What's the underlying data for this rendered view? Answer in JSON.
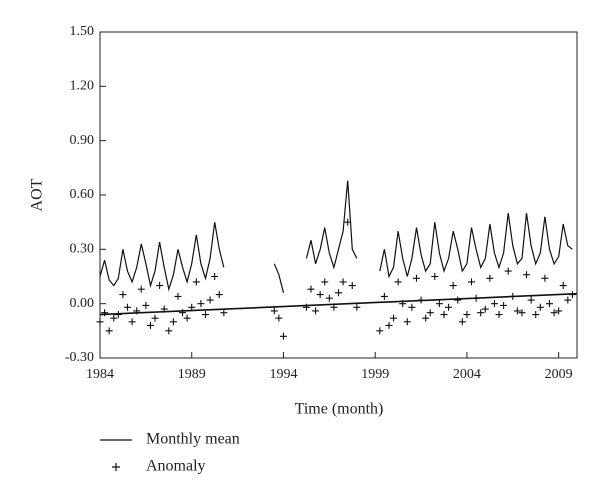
{
  "chart_data": {
    "type": "line",
    "xlabel": "Time (month)",
    "ylabel": "AOT",
    "x": [
      1984.0,
      1984.25,
      1984.5,
      1984.75,
      1985.0,
      1985.25,
      1985.5,
      1985.75,
      1986.0,
      1986.25,
      1986.5,
      1986.75,
      1987.0,
      1987.25,
      1987.5,
      1987.75,
      1988.0,
      1988.25,
      1988.5,
      1988.75,
      1989.0,
      1989.25,
      1989.5,
      1989.75,
      1990.0,
      1990.25,
      1990.5,
      1990.75,
      1991.0,
      1991.25,
      1991.5,
      1991.75,
      1992.0,
      1992.25,
      1992.5,
      1992.75,
      1993.0,
      1993.25,
      1993.5,
      1993.75,
      1994.0,
      1994.25,
      1994.5,
      1994.75,
      1995.0,
      1995.25,
      1995.5,
      1995.75,
      1996.0,
      1996.25,
      1996.5,
      1996.75,
      1997.0,
      1997.25,
      1997.5,
      1997.75,
      1998.0,
      1998.25,
      1998.5,
      1998.75,
      1999.0,
      1999.25,
      1999.5,
      1999.75,
      2000.0,
      2000.25,
      2000.5,
      2000.75,
      2001.0,
      2001.25,
      2001.5,
      2001.75,
      2002.0,
      2002.25,
      2002.5,
      2002.75,
      2003.0,
      2003.25,
      2003.5,
      2003.75,
      2004.0,
      2004.25,
      2004.5,
      2004.75,
      2005.0,
      2005.25,
      2005.5,
      2005.75,
      2006.0,
      2006.25,
      2006.5,
      2006.75,
      2007.0,
      2007.25,
      2007.5,
      2007.75,
      2008.0,
      2008.25,
      2008.5,
      2008.75,
      2009.0,
      2009.25,
      2009.5,
      2009.75
    ],
    "series": [
      {
        "name": "Monthly mean",
        "color": "#111111",
        "marker": "line",
        "values": [
          0.15,
          0.24,
          0.13,
          0.1,
          0.14,
          0.3,
          0.18,
          0.12,
          0.2,
          0.33,
          0.22,
          0.1,
          0.18,
          0.34,
          0.2,
          0.08,
          0.16,
          0.3,
          0.2,
          0.12,
          0.22,
          0.38,
          0.22,
          0.14,
          0.25,
          0.45,
          0.3,
          0.2,
          null,
          null,
          null,
          null,
          null,
          null,
          null,
          null,
          null,
          null,
          0.22,
          0.16,
          0.06,
          null,
          null,
          null,
          null,
          0.25,
          0.35,
          0.22,
          0.3,
          0.42,
          0.28,
          0.2,
          0.3,
          0.4,
          0.68,
          0.3,
          0.25,
          null,
          null,
          null,
          null,
          0.18,
          0.3,
          0.15,
          0.2,
          0.4,
          0.25,
          0.15,
          0.25,
          0.42,
          0.27,
          0.18,
          0.22,
          0.45,
          0.28,
          0.18,
          0.25,
          0.4,
          0.3,
          0.18,
          0.22,
          0.42,
          0.3,
          0.2,
          0.25,
          0.44,
          0.28,
          0.2,
          0.28,
          0.5,
          0.32,
          0.22,
          0.25,
          0.5,
          0.32,
          0.22,
          0.28,
          0.48,
          0.3,
          0.22,
          0.26,
          0.44,
          0.32,
          0.3
        ]
      },
      {
        "name": "Anomaly",
        "color": "#111111",
        "marker": "plus",
        "values": [
          -0.1,
          -0.05,
          -0.15,
          -0.08,
          -0.06,
          0.05,
          -0.02,
          -0.1,
          -0.04,
          0.08,
          -0.01,
          -0.12,
          -0.08,
          0.1,
          -0.03,
          -0.15,
          -0.1,
          0.04,
          -0.05,
          -0.08,
          -0.02,
          0.12,
          0.0,
          -0.06,
          0.02,
          0.15,
          0.05,
          -0.05,
          null,
          null,
          null,
          null,
          null,
          null,
          null,
          null,
          null,
          null,
          -0.04,
          -0.08,
          -0.18,
          null,
          null,
          null,
          null,
          -0.02,
          0.08,
          -0.04,
          0.05,
          0.12,
          0.03,
          -0.02,
          0.06,
          0.12,
          0.45,
          0.1,
          -0.02,
          null,
          null,
          null,
          null,
          -0.15,
          0.04,
          -0.12,
          -0.08,
          0.12,
          0.0,
          -0.1,
          -0.02,
          0.14,
          0.02,
          -0.08,
          -0.05,
          0.15,
          0.0,
          -0.06,
          -0.02,
          0.1,
          0.02,
          -0.1,
          -0.06,
          0.12,
          0.03,
          -0.05,
          -0.03,
          0.14,
          0.0,
          -0.06,
          -0.01,
          0.18,
          0.04,
          -0.04,
          -0.05,
          0.16,
          0.02,
          -0.06,
          -0.02,
          0.14,
          0.0,
          -0.05,
          -0.04,
          0.1,
          0.02,
          0.05
        ]
      }
    ],
    "trend_line": {
      "x": [
        1984,
        2010
      ],
      "values": [
        -0.06,
        0.055
      ]
    },
    "xlim": [
      1984,
      2010
    ],
    "xticks": [
      1984,
      1989,
      1994,
      1999,
      2004,
      2009
    ],
    "ylim": [
      -0.3,
      1.5
    ],
    "yticks": [
      {
        "value": -0.3,
        "label": "-0.30"
      },
      {
        "value": 0,
        "label": "0.00"
      },
      {
        "value": 0.3,
        "label": "0.30"
      },
      {
        "value": 0.6,
        "label": "0.60"
      },
      {
        "value": 0.9,
        "label": "0.90"
      },
      {
        "value": 1.2,
        "label": "1.20"
      },
      {
        "value": 1.5,
        "label": "1.50"
      }
    ],
    "grid": false
  }
}
